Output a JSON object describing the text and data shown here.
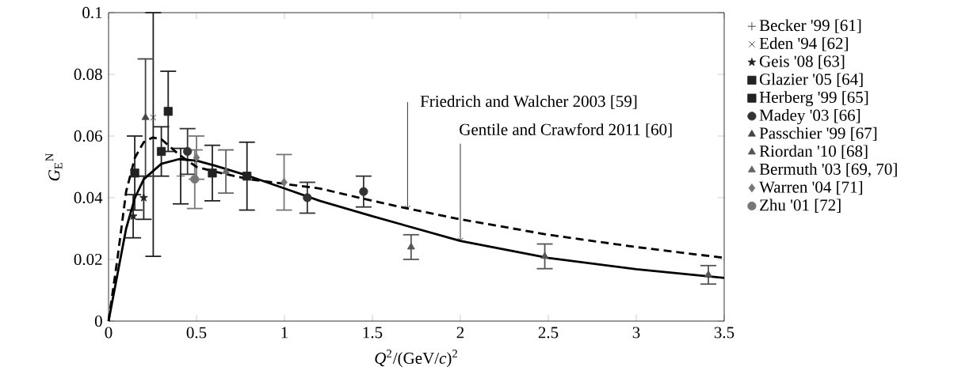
{
  "chart_data": {
    "type": "scatter",
    "xlabel": "*Q*$^{2}$/(GeV/*c*)$^{2}$",
    "ylabel": "*G*$_{E}$$^{N}$",
    "xlim": [
      0,
      3.5
    ],
    "ylim": [
      0,
      0.1
    ],
    "xticks": [
      0,
      0.5,
      1,
      1.5,
      2,
      2.5,
      3,
      3.5
    ],
    "yticks": [
      0,
      0.02,
      0.04,
      0.06,
      0.08,
      0.1
    ],
    "grid": false,
    "legend": "right",
    "series": [
      {
        "name": "Becker '99 [61]",
        "color": "#222222",
        "marker": "plus",
        "x": [
          0.41
        ],
        "values": [
          0.047
        ],
        "errors": [
          0.009
        ]
      },
      {
        "name": "Eden '94 [62]",
        "color": "#222222",
        "marker": "cross",
        "x": [
          0.254
        ],
        "values": [
          0.066
        ],
        "errors": [
          [
            0.021,
            0.1
          ]
        ]
      },
      {
        "name": "Geis '08 [63]",
        "color": "#222222",
        "marker": "star",
        "x": [
          0.14,
          0.2
        ],
        "values": [
          0.034,
          0.04
        ],
        "errors": [
          0.007,
          0.007
        ]
      },
      {
        "name": "Glazier '05 [64]",
        "color": "#222222",
        "marker": "square",
        "x": [
          0.3,
          0.59,
          0.787
        ],
        "values": [
          0.055,
          0.048,
          0.047
        ],
        "errors": [
          0.008,
          0.009,
          0.011
        ]
      },
      {
        "name": "Herberg '99 [65]",
        "color": "#222222",
        "marker": "square",
        "x": [
          0.149,
          0.339
        ],
        "values": [
          0.048,
          0.068
        ],
        "errors": [
          0.012,
          0.013
        ]
      },
      {
        "name": "Madey '03 [66]",
        "color": "#333333",
        "marker": "circle",
        "x": [
          0.449,
          1.13,
          1.45
        ],
        "values": [
          0.055,
          0.04,
          0.042
        ],
        "errors": [
          0.0074,
          0.005,
          0.005
        ]
      },
      {
        "name": "Passchier '99 [67]",
        "color": "#444444",
        "marker": "triangle",
        "x": [
          0.21
        ],
        "values": [
          0.066
        ],
        "errors": [
          0.019
        ]
      },
      {
        "name": "Riordan '10 [68]",
        "color": "#555555",
        "marker": "triangle",
        "x": [
          1.72,
          2.48,
          3.41
        ],
        "values": [
          0.024,
          0.021,
          0.015
        ],
        "errors": [
          0.004,
          0.004,
          0.003
        ]
      },
      {
        "name": "Bermuth '03 [69, 70]",
        "color": "#666666",
        "marker": "triangle",
        "x": [
          0.667
        ],
        "values": [
          0.0485
        ],
        "errors": [
          0.007
        ]
      },
      {
        "name": "Warren '04 [71]",
        "color": "#777777",
        "marker": "diamond",
        "x": [
          0.5,
          0.998
        ],
        "values": [
          0.053,
          0.045
        ],
        "errors": [
          0.007,
          0.009
        ]
      },
      {
        "name": "Zhu '01 [72]",
        "color": "#777777",
        "marker": "circle",
        "x": [
          0.49
        ],
        "values": [
          0.046
        ],
        "errors": [
          0.0095
        ]
      },
      {
        "type": "line",
        "color": "#000000",
        "line_style": "dashed",
        "x": [
          0,
          0.05,
          0.1,
          0.15,
          0.2,
          0.25,
          0.3,
          0.4,
          0.5,
          0.6,
          0.8,
          1.0,
          1.2,
          1.5,
          1.7,
          2.0,
          2.5,
          3.0,
          3.5
        ],
        "values": [
          0,
          0.02,
          0.042,
          0.053,
          0.058,
          0.0595,
          0.059,
          0.054,
          0.05,
          0.0485,
          0.046,
          0.0445,
          0.043,
          0.039,
          0.0365,
          0.033,
          0.028,
          0.024,
          0.0205
        ]
      },
      {
        "type": "line",
        "color": "#000000",
        "line_style": "solid",
        "x": [
          0,
          0.05,
          0.1,
          0.15,
          0.2,
          0.3,
          0.4,
          0.5,
          0.6,
          0.8,
          1.0,
          1.2,
          1.5,
          2.0,
          2.5,
          3.0,
          3.5
        ],
        "values": [
          0,
          0.015,
          0.03,
          0.04,
          0.046,
          0.051,
          0.0525,
          0.052,
          0.0505,
          0.047,
          0.043,
          0.039,
          0.034,
          0.026,
          0.0205,
          0.0168,
          0.014
        ]
      }
    ],
    "annotations": [
      {
        "text": "Friedrich and Walcher 2003 [59]",
        "x": 1.7,
        "y": 0.0365
      },
      {
        "text": "Gentile and Crawford 2011 [60]",
        "x": 2.0,
        "y": 0.026
      }
    ]
  }
}
